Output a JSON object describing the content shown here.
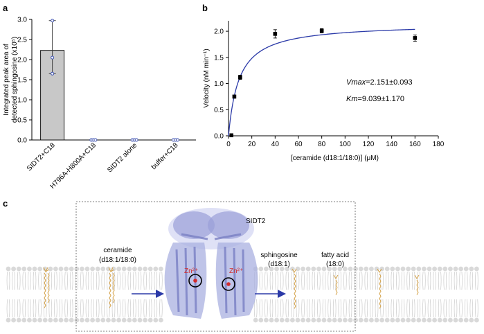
{
  "panels": {
    "a": "a",
    "b": "b",
    "c": "c"
  },
  "chart_data": [
    {
      "type": "bar",
      "panel": "a",
      "categories": [
        "SIDT2+C18",
        "H796A-H800A+C18",
        "SIDT2 alone",
        "buffer+C18"
      ],
      "values": [
        2.23,
        0.0,
        0.0,
        0.0
      ],
      "error_high": [
        2.97,
        0.0,
        0.0,
        0.0
      ],
      "error_low": [
        1.65,
        0.0,
        0.0,
        0.0
      ],
      "points": [
        [
          2.97,
          2.05,
          1.65
        ],
        [
          0.0,
          0.0,
          0.0
        ],
        [
          0.0,
          0.0,
          0.0
        ],
        [
          0.0,
          0.0,
          0.0
        ]
      ],
      "ylabel_line1": "Integrated peak area of",
      "ylabel_line2": "detected sphingosine (x10⁵)",
      "xlabel": "",
      "ylim": [
        0,
        3.0
      ],
      "yticks": [
        "0.0",
        "0.5",
        "1.0",
        "1.5",
        "2.0",
        "2.5",
        "3.0"
      ],
      "bar_color": "#c8c8c8",
      "point_color": "#3a4fb0"
    },
    {
      "type": "scatter",
      "panel": "b",
      "x": [
        2.5,
        5,
        10,
        40,
        80,
        160
      ],
      "y": [
        0.01,
        0.75,
        1.12,
        1.95,
        2.01,
        1.87
      ],
      "yerr": [
        0.02,
        0.03,
        0.04,
        0.08,
        0.04,
        0.06
      ],
      "fit": {
        "model": "Michaelis-Menten",
        "vmax": 2.151,
        "km": 9.039,
        "color": "#2b3aa8"
      },
      "xlabel": "[ceramide (d18:1/18:0)] (μM)",
      "ylabel": "Velocity (nM min⁻¹)",
      "xlim": [
        0,
        180
      ],
      "ylim": [
        0,
        2.2
      ],
      "xticks": [
        "0",
        "20",
        "40",
        "60",
        "80",
        "100",
        "120",
        "140",
        "160",
        "180"
      ],
      "yticks": [
        "0.0",
        "0.5",
        "1.0",
        "1.5",
        "2.0"
      ],
      "annotation_vmax_label": "Vmax",
      "annotation_vmax_value": "=2.151±0.093",
      "annotation_km_label": "Km",
      "annotation_km_value": "=9.039±1.170"
    }
  ],
  "diagram": {
    "protein_label": "SIDT2",
    "zinc_label": "Zn²⁺",
    "substrate_label": "ceramide",
    "substrate_sub": "(d18:1/18:0)",
    "product1_label": "sphingosine",
    "product1_sub": "(d18:1)",
    "product2_label": "fatty acid",
    "product2_sub": "(18:0)",
    "lipid_color": "#d4a24a",
    "protein_color": "#9aa0d8",
    "arrow_color": "#2b3aa8",
    "zinc_color": "#d22b2b"
  }
}
